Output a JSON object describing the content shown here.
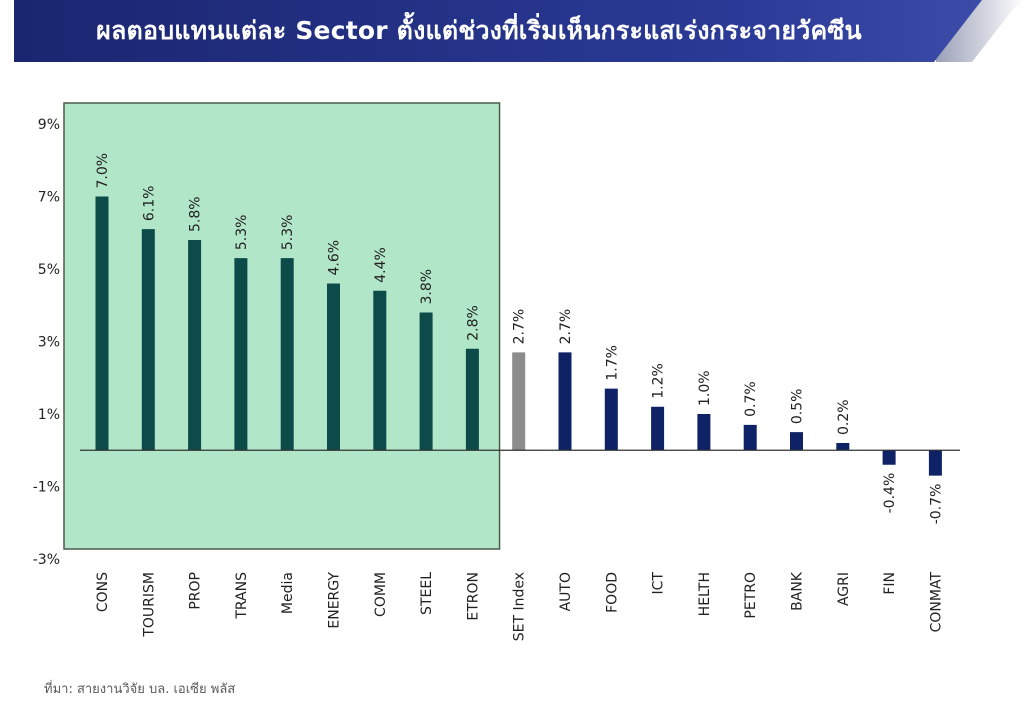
{
  "header": {
    "title": "ผลตอบแทนแต่ละ Sector ตั้งแต่ช่วงที่เริ่มเห็นกระแสเร่งกระจายวัคซีน"
  },
  "colors": {
    "banner_dark": "#1e2a78",
    "banner_mid": "#2e3d9c",
    "banner_light": "#9fa3b8",
    "highlight_fill": "#b2e6c8",
    "highlight_border": "#4a5a4a",
    "bar_teal": "#0d4a4a",
    "bar_gray": "#8c8c8c",
    "bar_navy": "#0f2266"
  },
  "chart_data": {
    "type": "bar",
    "categories": [
      "CONS",
      "TOURISM",
      "PROP",
      "TRANS",
      "Media",
      "ENERGY",
      "COMM",
      "STEEL",
      "ETRON",
      "SET Index",
      "AUTO",
      "FOOD",
      "ICT",
      "HELTH",
      "PETRO",
      "BANK",
      "AGRI",
      "FIN",
      "CONMAT"
    ],
    "values": [
      7.0,
      6.1,
      5.8,
      5.3,
      5.3,
      4.6,
      4.4,
      3.8,
      2.8,
      2.7,
      2.7,
      1.7,
      1.2,
      1.0,
      0.7,
      0.5,
      0.2,
      -0.4,
      -0.7
    ],
    "data_labels": [
      "7.0%",
      "6.1%",
      "5.8%",
      "5.3%",
      "5.3%",
      "4.6%",
      "4.4%",
      "3.8%",
      "2.8%",
      "2.7%",
      "2.7%",
      "1.7%",
      "1.2%",
      "1.0%",
      "0.7%",
      "0.5%",
      "0.2%",
      "-0.4%",
      "-0.7%"
    ],
    "bar_groups": [
      "teal",
      "teal",
      "teal",
      "teal",
      "teal",
      "teal",
      "teal",
      "teal",
      "teal",
      "gray",
      "navy",
      "navy",
      "navy",
      "navy",
      "navy",
      "navy",
      "navy",
      "navy",
      "navy"
    ],
    "highlighted_categories": [
      "CONS",
      "TOURISM",
      "PROP",
      "TRANS",
      "Media",
      "ENERGY",
      "COMM",
      "STEEL",
      "ETRON"
    ],
    "yticks": [
      9,
      7,
      5,
      3,
      1,
      -1,
      -3
    ],
    "ytick_labels": [
      "9%",
      "7%",
      "5%",
      "3%",
      "1%",
      "-1%",
      "-3%"
    ],
    "ylim": [
      -3,
      9
    ],
    "xlabel": "",
    "ylabel": "",
    "grid": false,
    "legend": "none"
  },
  "footer": {
    "source": "ที่มา: สายงานวิจัย บล. เอเซีย พลัส"
  }
}
